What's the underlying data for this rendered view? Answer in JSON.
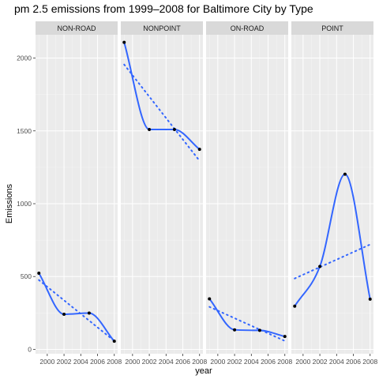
{
  "chart_data": {
    "type": "line",
    "title": "pm 2.5 emissions from 1999–2008 for Baltimore City by Type",
    "xlabel": "year",
    "ylabel": "Emissions",
    "x": [
      1999,
      2002,
      2005,
      2008
    ],
    "x_ticks": [
      "2000",
      "2002",
      "2004",
      "2006",
      "2008"
    ],
    "y_ticks": [
      "0",
      "500",
      "1000",
      "1500",
      "2000"
    ],
    "xlim": [
      1998.6,
      2008.4
    ],
    "ylim": [
      -30,
      2160
    ],
    "grid": true,
    "facets": [
      {
        "name": "NON-ROAD",
        "values": [
          522.94,
          240.85,
          248.93,
          55.82
        ]
      },
      {
        "name": "NONPOINT",
        "values": [
          2107.63,
          1509.5,
          1509.5,
          1373.21
        ]
      },
      {
        "name": "ON-ROAD",
        "values": [
          346.82,
          134.31,
          130.43,
          88.28
        ]
      },
      {
        "name": "POINT",
        "values": [
          296.8,
          569.26,
          1202.49,
          344.98
        ]
      }
    ],
    "colors": {
      "smooth_line": "#3366FF",
      "points": "#000000",
      "panel_bg": "#EBEBEB",
      "strip_bg": "#D9D9D9",
      "grid": "#FFFFFF"
    }
  }
}
